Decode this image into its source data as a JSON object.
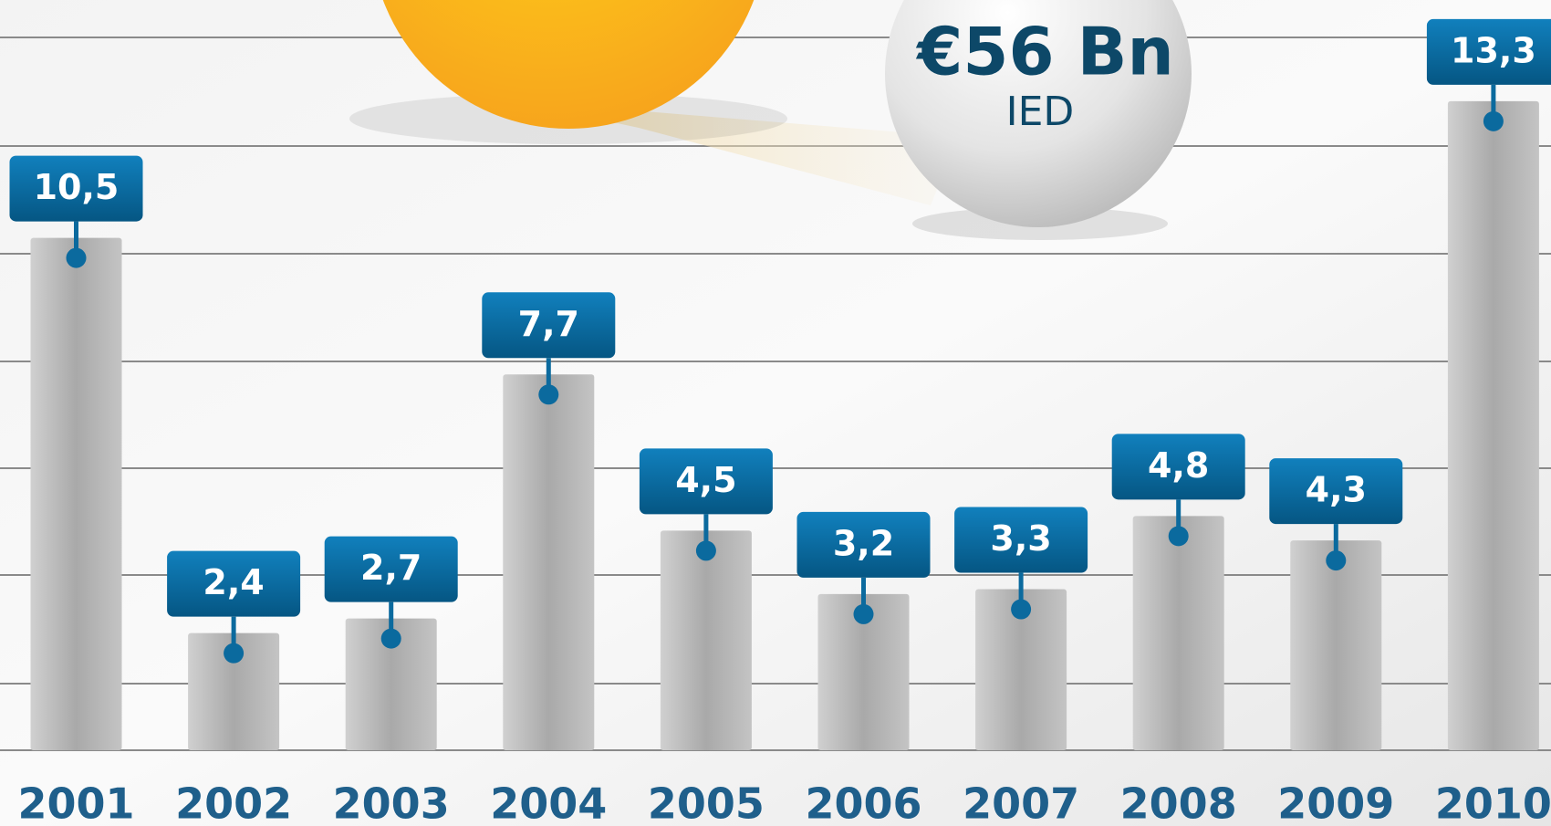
{
  "chart_data": {
    "type": "bar",
    "categories": [
      "2001",
      "2002",
      "2003",
      "2004",
      "2005",
      "2006",
      "2007",
      "2008",
      "2009",
      "2010"
    ],
    "values": [
      10.5,
      2.4,
      2.7,
      7.7,
      4.5,
      3.2,
      3.3,
      4.8,
      4.3,
      13.3
    ],
    "value_labels": [
      "10,5",
      "2,4",
      "2,7",
      "7,7",
      "4,5",
      "3,2",
      "3,3",
      "4,8",
      "4,3",
      "13,3"
    ],
    "color": "#b4b4b4",
    "label_color": "#0b6a9e",
    "ylim": [
      0,
      15
    ],
    "annotation": {
      "value": "€56 Bn",
      "label": "IED"
    }
  }
}
